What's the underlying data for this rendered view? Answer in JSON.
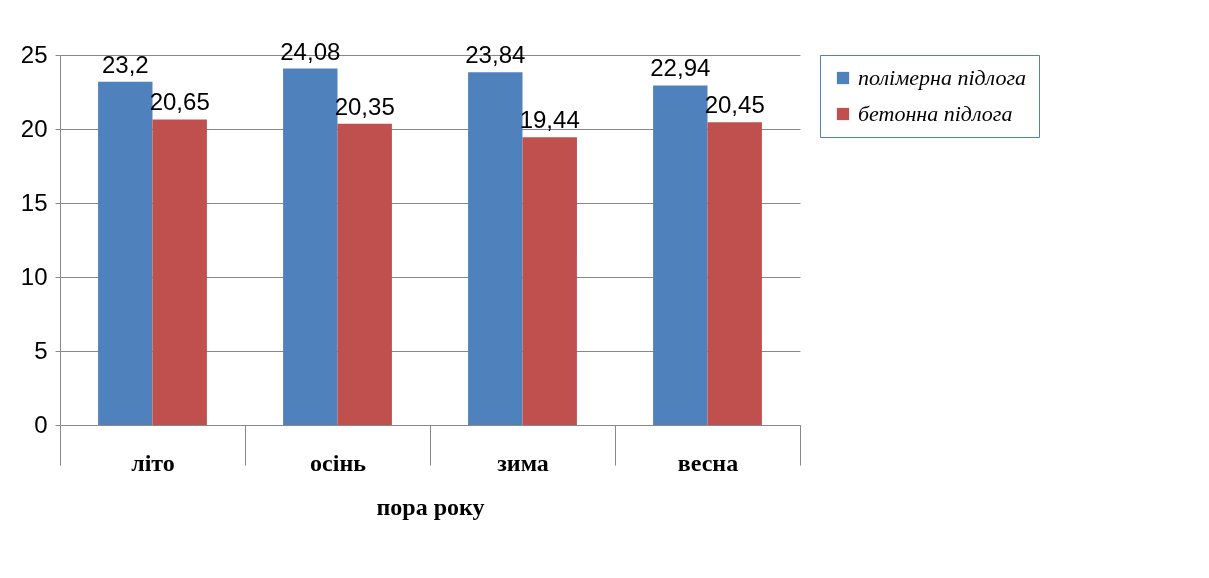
{
  "chart_data": {
    "type": "bar",
    "xlabel": "пора року",
    "categories": [
      "літо",
      "осінь",
      "зима",
      "весна"
    ],
    "series": [
      {
        "name": "полімерна підлога",
        "color": "#4f81bd",
        "values": [
          23.2,
          24.08,
          23.84,
          22.94
        ],
        "value_labels": [
          "23,2",
          "24,08",
          "23,84",
          "22,94"
        ]
      },
      {
        "name": "бетонна підлога",
        "color": "#c0504d",
        "values": [
          20.65,
          20.35,
          19.44,
          20.45
        ],
        "value_labels": [
          "20,65",
          "20,35",
          "19,44",
          "20,45"
        ]
      }
    ],
    "ylim": [
      0,
      25
    ],
    "yticks": [
      0,
      5,
      10,
      15,
      20,
      25
    ],
    "grid": "y",
    "legend": "right"
  }
}
